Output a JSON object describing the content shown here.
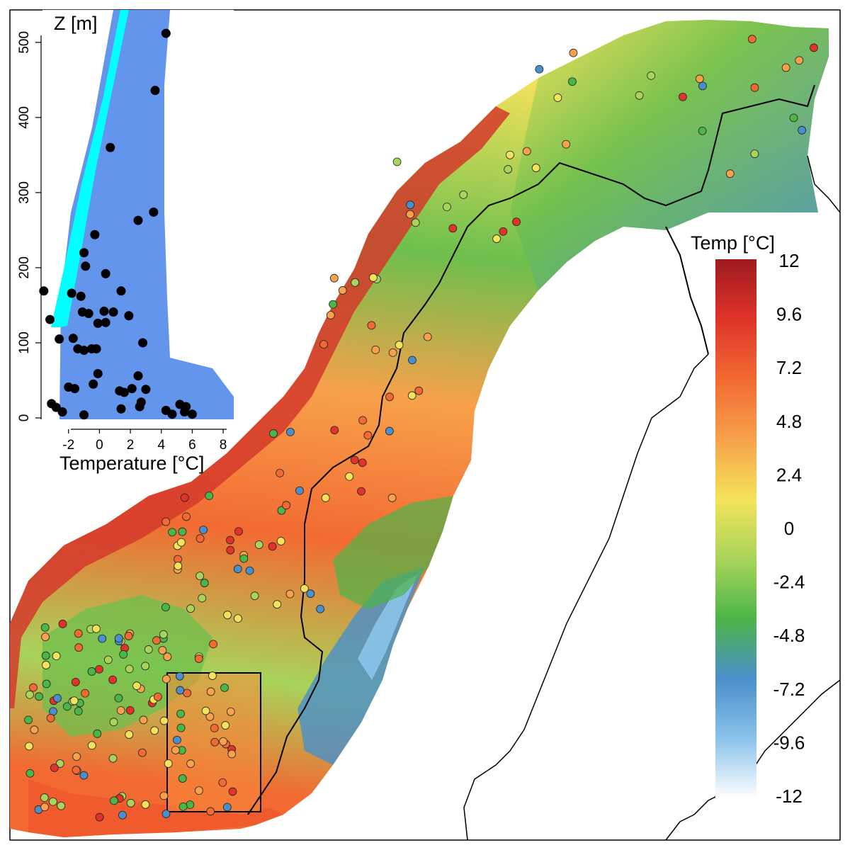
{
  "inset": {
    "ylabel": "Z [m]",
    "xlabel": "Temperature [°C]",
    "xticks": [
      "-2",
      "0",
      "2",
      "4",
      "6",
      "8"
    ],
    "yticks": [
      "0",
      "100",
      "200",
      "300",
      "400",
      "500"
    ],
    "colors": {
      "cyan": "#00ffff",
      "blue": "#6495ed",
      "black": "#000000"
    }
  },
  "colorbar": {
    "title": "Temp [°C]",
    "ticks": [
      "12",
      "9.6",
      "7.2",
      "4.8",
      "2.4",
      "0",
      "-2.4",
      "-4.8",
      "-7.2",
      "-9.6",
      "-12"
    ],
    "colors": [
      "#9e1a1e",
      "#e0342a",
      "#f26a32",
      "#f7a14a",
      "#f4e35a",
      "#a8d45a",
      "#4bb548",
      "#4a8fcb",
      "#8bc3ea",
      "#ffffff"
    ]
  },
  "chart_data": {
    "type": "scatter",
    "xlabel": "Temperature [°C]",
    "ylabel": "Z [m]",
    "xlim": [
      -3.5,
      8.5
    ],
    "ylim": [
      0,
      530
    ],
    "series": [
      {
        "color": "#000000",
        "points": [
          [
            4.3,
            512
          ],
          [
            3.6,
            436
          ],
          [
            0.7,
            360
          ],
          [
            2.5,
            263
          ],
          [
            3.5,
            274
          ],
          [
            -0.3,
            244
          ],
          [
            -1,
            220
          ],
          [
            -0.9,
            202
          ],
          [
            0.4,
            192
          ],
          [
            -3.6,
            169
          ],
          [
            -1.8,
            166
          ],
          [
            -1.2,
            162
          ],
          [
            1.4,
            169
          ],
          [
            -1.1,
            141
          ],
          [
            -0.7,
            139
          ],
          [
            0.3,
            142
          ],
          [
            0.9,
            141
          ],
          [
            1.9,
            136
          ],
          [
            -0.1,
            126
          ],
          [
            0.4,
            127
          ],
          [
            -3.2,
            131
          ],
          [
            -2.6,
            105
          ],
          [
            -1.7,
            106
          ],
          [
            -1.4,
            92
          ],
          [
            -1,
            90
          ],
          [
            -0.5,
            92
          ],
          [
            -0.2,
            92
          ],
          [
            2.8,
            100
          ],
          [
            -0.1,
            59
          ],
          [
            -2,
            41
          ],
          [
            -1.6,
            39
          ],
          [
            -0.4,
            45
          ],
          [
            1.3,
            36
          ],
          [
            1.6,
            34
          ],
          [
            2.1,
            39
          ],
          [
            2.5,
            56
          ],
          [
            3,
            38
          ],
          [
            2.7,
            21
          ],
          [
            -3.1,
            19
          ],
          [
            -2.8,
            14
          ],
          [
            -2.4,
            8
          ],
          [
            -1,
            4
          ],
          [
            1.4,
            12
          ],
          [
            2.6,
            15
          ],
          [
            4.3,
            10
          ],
          [
            4.7,
            5
          ],
          [
            5.2,
            18
          ],
          [
            5.6,
            15
          ],
          [
            6,
            5
          ],
          [
            5.5,
            8
          ]
        ]
      }
    ]
  }
}
